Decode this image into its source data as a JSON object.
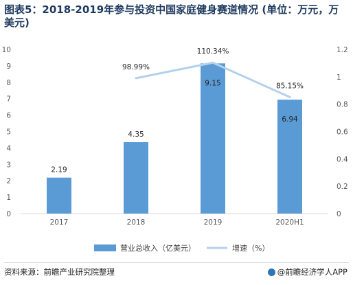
{
  "title": "图表5：2018-2019年参与投资中国家庭健身赛道情况 (单位：万元，万美元)",
  "source": "资料来源：前瞻产业研究院整理",
  "brand": "@前瞻经济学人APP",
  "colors": {
    "bar": "#5b9bd5",
    "line": "#b4d1ec",
    "title": "#1f3a5f"
  },
  "chart_data": {
    "type": "bar",
    "categories": [
      "2017",
      "2018",
      "2019",
      "2020H1"
    ],
    "series": [
      {
        "name": "营业总收入（亿美元）",
        "kind": "bar",
        "axis": "left",
        "values": [
          2.19,
          4.35,
          9.15,
          6.94
        ],
        "labels": [
          "2.19",
          "4.35",
          "9.15",
          "6.94"
        ]
      },
      {
        "name": "增速（%）",
        "kind": "line",
        "axis": "right",
        "values": [
          null,
          0.9899,
          1.1034,
          0.8515
        ],
        "labels": [
          "",
          "98.99%",
          "110.34%",
          "85.15%"
        ]
      }
    ],
    "y_left": {
      "min": 0,
      "max": 10,
      "ticks": [
        "0",
        "1",
        "2",
        "3",
        "4",
        "5",
        "6",
        "7",
        "8",
        "9",
        "10"
      ]
    },
    "y_right": {
      "min": 0,
      "max": 1.2,
      "ticks": [
        "0",
        "0.2",
        "0.4",
        "0.6",
        "0.8",
        "1",
        "1.2"
      ]
    },
    "grid": false,
    "legend_position": "bottom"
  }
}
